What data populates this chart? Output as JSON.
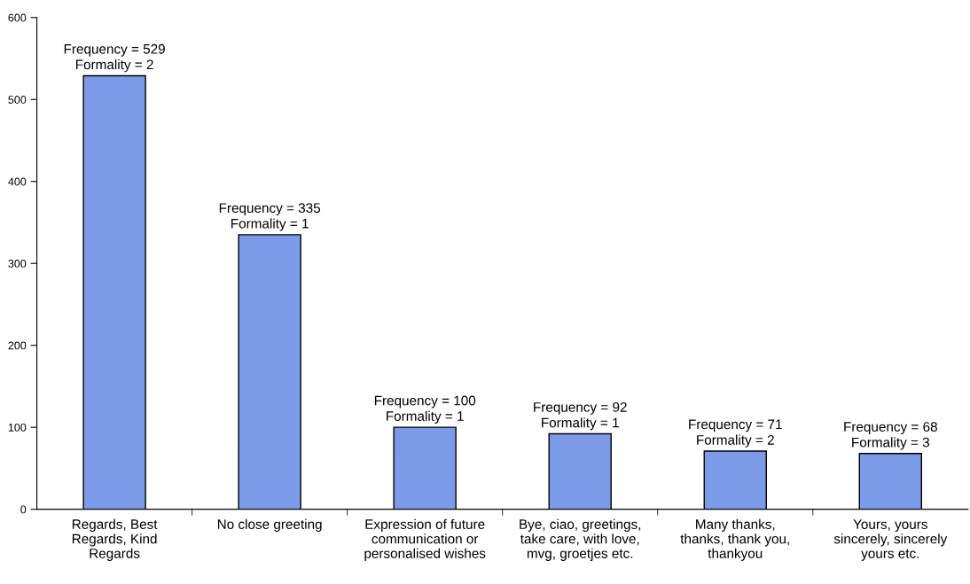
{
  "chart_data": {
    "type": "bar",
    "categories": [
      "Regards, Best\nRegards, Kind\nRegards",
      "No close greeting",
      "Expression of future\ncommunication or\npersonalised wishes",
      "Bye, ciao, greetings,\ntake care, with love,\nmvg, groetjes etc.",
      "Many thanks,\nthanks, thank you,\nthankyou",
      "Yours, yours\nsincerely, sincerely\nyours etc."
    ],
    "values": [
      529,
      335,
      100,
      92,
      71,
      68
    ],
    "value_labels": [
      "Frequency = 529\nFormality = 2",
      "Frequency = 335\nFormality = 1",
      "Frequency = 100\nFormality = 1",
      "Frequency = 92\nFormality = 1",
      "Frequency = 71\nFormality = 2",
      "Frequency = 68\nFormality = 3"
    ],
    "color": "#7b9be8",
    "ylim": [
      0,
      600
    ],
    "yticks": [
      0,
      100,
      200,
      300,
      400,
      500,
      600
    ],
    "grid": false,
    "legend": false
  }
}
